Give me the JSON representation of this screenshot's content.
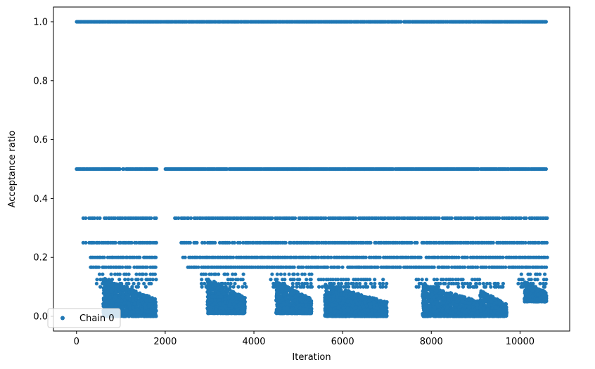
{
  "chart_data": {
    "type": "scatter",
    "title": "",
    "xlabel": "Iteration",
    "ylabel": "Acceptance ratio",
    "xlim": [
      -520,
      11120
    ],
    "ylim": [
      -0.05,
      1.05
    ],
    "x_ticks": [
      0,
      2000,
      4000,
      6000,
      8000,
      10000
    ],
    "y_ticks": [
      0.0,
      0.2,
      0.4,
      0.6,
      0.8,
      1.0
    ],
    "grid": false,
    "legend": {
      "placement": "lower-left",
      "entries": [
        "Chain 0"
      ]
    },
    "marker_color": "#1f77b4",
    "series": [
      {
        "name": "Chain 0",
        "marker": "circle",
        "description_levels": [
          1.0,
          0.5,
          0.3333,
          0.25,
          0.2,
          0.1667,
          0.1429,
          0.125,
          0.1111,
          0.1
        ],
        "level_ranges": [
          {
            "y": 1.0,
            "x": [
              0,
              10600
            ]
          },
          {
            "y": 0.5,
            "x": [
              0,
              1800
            ]
          },
          {
            "y": 0.5,
            "x": [
              2000,
              10600
            ]
          },
          {
            "y": 0.3333,
            "x": [
              150,
              1800
            ]
          },
          {
            "y": 0.3333,
            "x": [
              2200,
              10600
            ]
          },
          {
            "y": 0.25,
            "x": [
              150,
              1800
            ]
          },
          {
            "y": 0.25,
            "x": [
              2350,
              10600
            ]
          },
          {
            "y": 0.2,
            "x": [
              300,
              1800
            ]
          },
          {
            "y": 0.2,
            "x": [
              2400,
              10600
            ]
          },
          {
            "y": 0.1667,
            "x": [
              300,
              1800
            ]
          },
          {
            "y": 0.1667,
            "x": [
              2500,
              10600
            ]
          }
        ],
        "clusters": [
          {
            "x": [
              600,
              1800
            ],
            "y": [
              0.0,
              0.13
            ]
          },
          {
            "x": [
              2950,
              3800
            ],
            "y": [
              0.01,
              0.13
            ]
          },
          {
            "x": [
              4500,
              5300
            ],
            "y": [
              0.01,
              0.12
            ]
          },
          {
            "x": [
              5600,
              7000
            ],
            "y": [
              0.0,
              0.11
            ]
          },
          {
            "x": [
              7800,
              9100
            ],
            "y": [
              0.0,
              0.11
            ]
          },
          {
            "x": [
              9100,
              9700
            ],
            "y": [
              0.0,
              0.09
            ]
          },
          {
            "x": [
              10100,
              10600
            ],
            "y": [
              0.05,
              0.12
            ]
          }
        ]
      }
    ]
  }
}
